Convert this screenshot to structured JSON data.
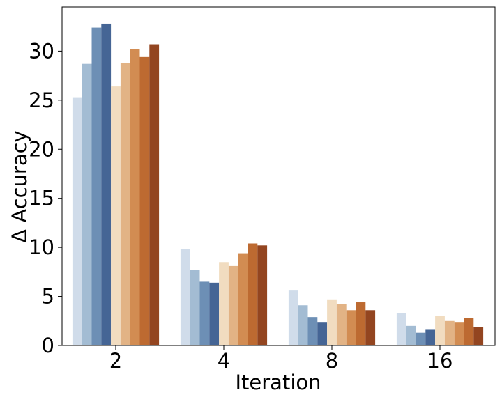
{
  "chart_data": {
    "type": "bar",
    "title": "",
    "xlabel": "Iteration",
    "ylabel": "Δ Accuracy",
    "categories": [
      "2",
      "4",
      "8",
      "16"
    ],
    "ylim": [
      0,
      34.5
    ],
    "yticks": [
      0,
      5,
      10,
      15,
      20,
      25,
      30
    ],
    "grid": false,
    "legend": "none",
    "series": [
      {
        "color": "#d0dcea",
        "values": [
          25.3,
          9.8,
          5.6,
          3.3
        ]
      },
      {
        "color": "#a3bcd3",
        "values": [
          28.7,
          7.7,
          4.1,
          2.0
        ]
      },
      {
        "color": "#6d8fb5",
        "values": [
          32.4,
          6.5,
          2.9,
          1.3
        ]
      },
      {
        "color": "#456595",
        "values": [
          32.8,
          6.4,
          2.4,
          1.6
        ]
      },
      {
        "color": "#f1dcc0",
        "values": [
          26.4,
          8.5,
          4.7,
          3.0
        ]
      },
      {
        "color": "#e2b385",
        "values": [
          28.8,
          8.1,
          4.2,
          2.5
        ]
      },
      {
        "color": "#d28c52",
        "values": [
          30.2,
          9.4,
          3.6,
          2.4
        ]
      },
      {
        "color": "#bd6a31",
        "values": [
          29.4,
          10.4,
          4.4,
          2.8
        ]
      },
      {
        "color": "#934520",
        "values": [
          30.7,
          10.2,
          3.6,
          1.9
        ]
      }
    ]
  }
}
